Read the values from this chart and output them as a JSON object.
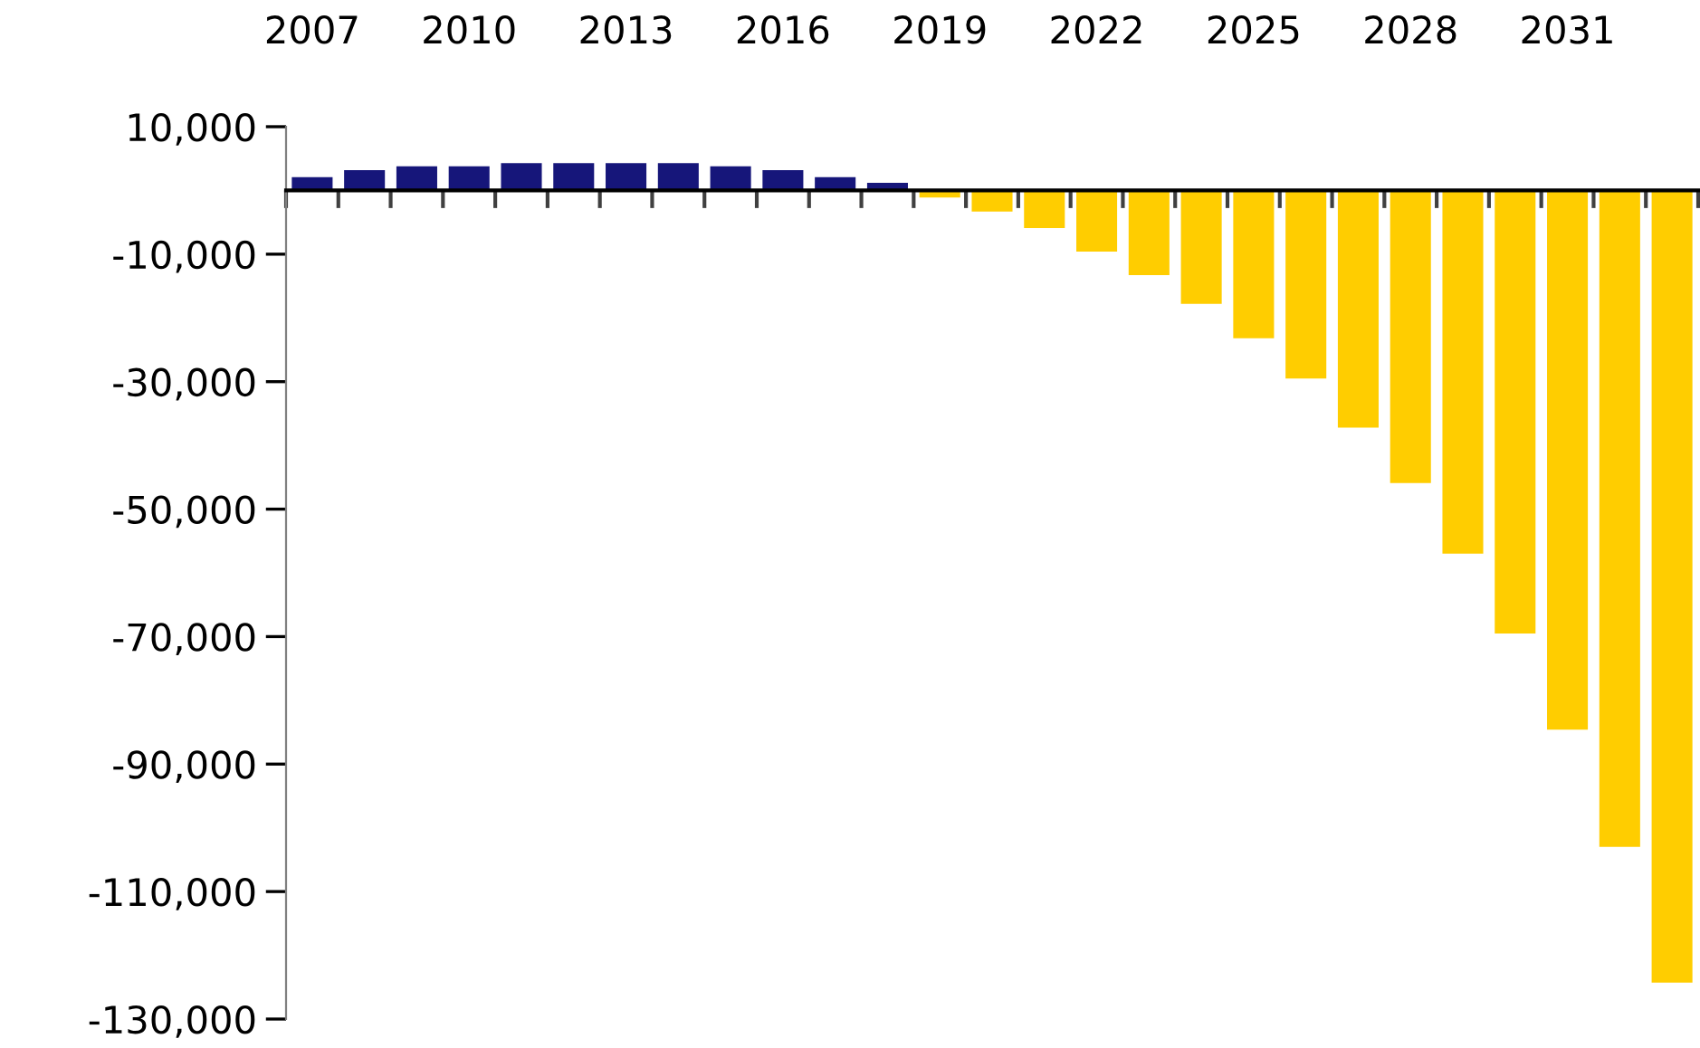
{
  "chart_data": {
    "type": "bar",
    "categories": [
      "2007",
      null,
      null,
      "2010",
      null,
      null,
      "2013",
      null,
      null,
      "2016",
      null,
      null,
      "2019",
      null,
      null,
      "2022",
      null,
      null,
      "2025",
      null,
      null,
      "2028",
      null,
      null,
      "2031",
      null,
      null
    ],
    "values": [
      2100,
      3200,
      3800,
      3800,
      4300,
      4300,
      4300,
      4300,
      3800,
      3200,
      2100,
      1200,
      -1100,
      -3300,
      -5900,
      -9600,
      -13300,
      -17800,
      -23200,
      -29500,
      -37200,
      -45900,
      -57000,
      -69500,
      -84600,
      -103000,
      -124300
    ],
    "colors": [
      "#16167a",
      "#16167a",
      "#16167a",
      "#16167a",
      "#16167a",
      "#16167a",
      "#16167a",
      "#16167a",
      "#16167a",
      "#16167a",
      "#16167a",
      "#16167a",
      "#ffcd00",
      "#ffcd00",
      "#ffcd00",
      "#ffcd00",
      "#ffcd00",
      "#ffcd00",
      "#ffcd00",
      "#ffcd00",
      "#ffcd00",
      "#ffcd00",
      "#ffcd00",
      "#ffcd00",
      "#ffcd00",
      "#ffcd00",
      "#ffcd00"
    ],
    "ylim": [
      -130000,
      10000
    ],
    "yticks": [
      {
        "value": 10000,
        "label": "10,000"
      },
      {
        "value": -10000,
        "label": "-10,000"
      },
      {
        "value": -30000,
        "label": "-30,000"
      },
      {
        "value": -50000,
        "label": "-50,000"
      },
      {
        "value": -70000,
        "label": "-70,000"
      },
      {
        "value": -90000,
        "label": "-90,000"
      },
      {
        "value": -110000,
        "label": "-110,000"
      },
      {
        "value": -130000,
        "label": "-130,000"
      }
    ],
    "grid": false,
    "legend": false
  }
}
